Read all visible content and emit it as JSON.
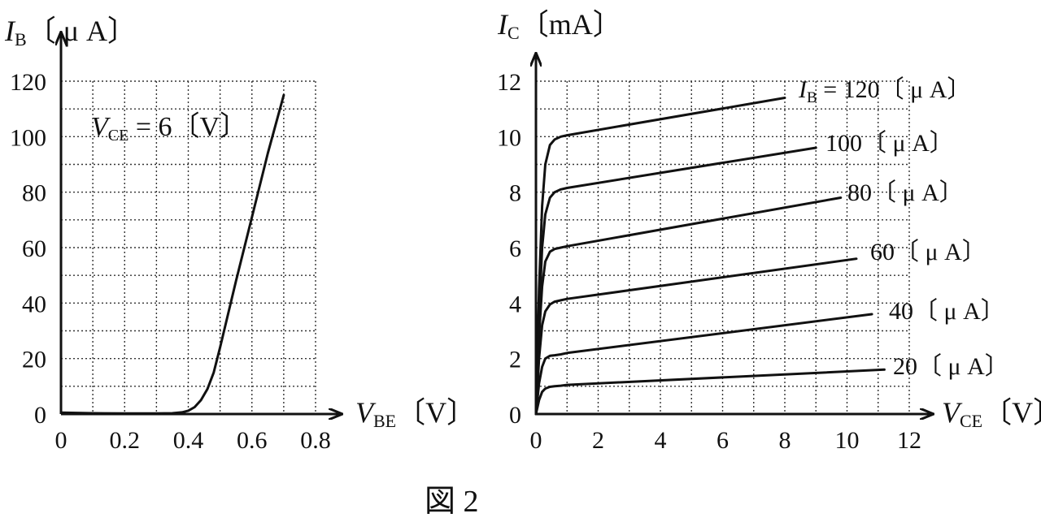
{
  "figure_caption": "図 2",
  "chart_data": [
    {
      "type": "line",
      "ylabel_main": "I",
      "ylabel_sub": "B",
      "ylabel_unit": "〔 μ A〕",
      "xlabel_main": "V",
      "xlabel_sub": "BE",
      "xlabel_unit": "〔V〕",
      "annotation_main": "V",
      "annotation_sub": "CE",
      "annotation_text": " = 6〔V〕",
      "xlim": [
        0,
        0.8
      ],
      "ylim": [
        0,
        120
      ],
      "xticks": [
        "0",
        "0.2",
        "0.4",
        "0.6",
        "0.8"
      ],
      "yticks": [
        "0",
        "20",
        "40",
        "60",
        "80",
        "100",
        "120"
      ],
      "grid": true,
      "series": [
        {
          "x": [
            0.0,
            0.1,
            0.2,
            0.3,
            0.35,
            0.38,
            0.4,
            0.42,
            0.44,
            0.46,
            0.48,
            0.5,
            0.55,
            0.6,
            0.65,
            0.7
          ],
          "y": [
            0.5,
            0.3,
            0.2,
            0.2,
            0.3,
            0.6,
            1.2,
            2.5,
            5,
            9,
            15,
            24,
            48,
            71,
            94,
            115
          ]
        }
      ]
    },
    {
      "type": "line",
      "ylabel_main": "I",
      "ylabel_sub": "C",
      "ylabel_unit": "〔mA〕",
      "xlabel_main": "V",
      "xlabel_sub": "CE",
      "xlabel_unit": "〔V〕",
      "xlim": [
        0,
        12
      ],
      "ylim": [
        0,
        12
      ],
      "xticks": [
        "0",
        "2",
        "4",
        "6",
        "8",
        "10",
        "12"
      ],
      "yticks": [
        "0",
        "2",
        "4",
        "6",
        "8",
        "10",
        "12"
      ],
      "grid": true,
      "series": [
        {
          "name": "I",
          "name_sub": "B",
          "name_rest": " = 120〔 μ A〕",
          "x": [
            0,
            0.1,
            0.2,
            0.3,
            0.45,
            0.6,
            0.8,
            1,
            8
          ],
          "y": [
            0,
            4.5,
            7.5,
            9,
            9.7,
            9.9,
            10,
            10.05,
            11.4
          ]
        },
        {
          "name": "100〔 μ A〕",
          "x": [
            0,
            0.1,
            0.2,
            0.3,
            0.45,
            0.6,
            0.8,
            1,
            9
          ],
          "y": [
            0,
            3.5,
            6,
            7.2,
            7.8,
            8,
            8.1,
            8.15,
            9.6
          ]
        },
        {
          "name": "80〔 μ A〕",
          "x": [
            0,
            0.1,
            0.2,
            0.3,
            0.45,
            0.6,
            0.8,
            1,
            9.8
          ],
          "y": [
            0,
            2.8,
            4.6,
            5.5,
            5.85,
            5.95,
            6,
            6.05,
            7.8
          ]
        },
        {
          "name": "60〔 μ A〕",
          "x": [
            0,
            0.1,
            0.2,
            0.3,
            0.45,
            0.6,
            0.8,
            1,
            10.3
          ],
          "y": [
            0,
            2,
            3.2,
            3.7,
            3.95,
            4.05,
            4.1,
            4.15,
            5.6
          ]
        },
        {
          "name": "40〔 μ A〕",
          "x": [
            0,
            0.1,
            0.2,
            0.3,
            0.45,
            0.6,
            0.8,
            1,
            10.8
          ],
          "y": [
            0,
            1.1,
            1.7,
            2,
            2.1,
            2.12,
            2.15,
            2.2,
            3.6
          ]
        },
        {
          "name": "20〔 μ A〕",
          "x": [
            0,
            0.1,
            0.2,
            0.3,
            0.45,
            0.6,
            0.8,
            1,
            11.2
          ],
          "y": [
            0,
            0.5,
            0.8,
            0.92,
            0.98,
            1,
            1.02,
            1.05,
            1.6
          ]
        }
      ]
    }
  ]
}
